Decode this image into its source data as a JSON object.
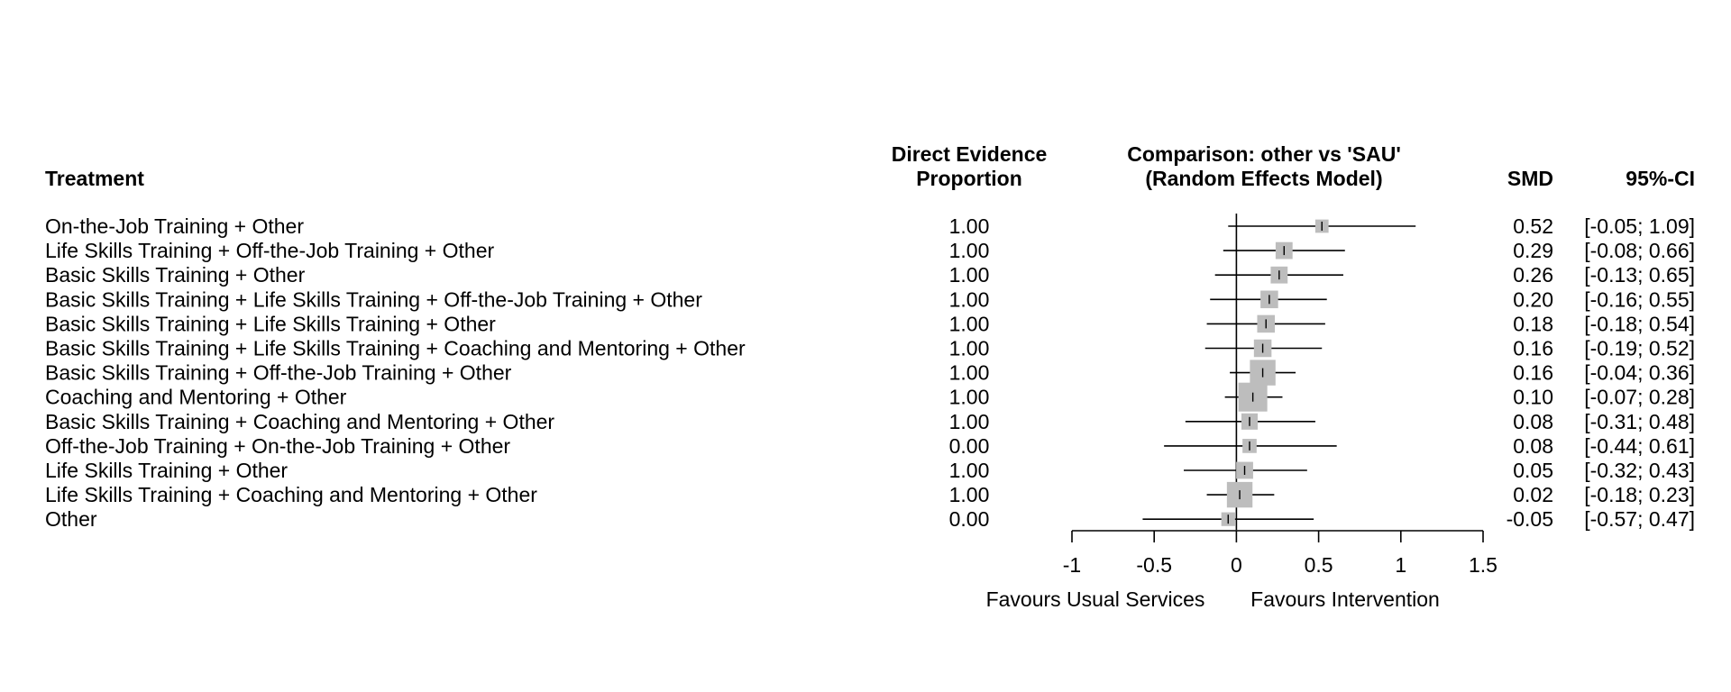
{
  "headers": {
    "treatment": "Treatment",
    "direct_evidence_line1": "Direct Evidence",
    "direct_evidence_line2": "Proportion",
    "comparison_line1": "Comparison: other vs 'SAU'",
    "comparison_line2": "(Random Effects Model)",
    "smd": "SMD",
    "ci": "95%-CI"
  },
  "x_axis": {
    "ticks": [
      "-1",
      "-0.5",
      "0",
      "0.5",
      "1",
      "1.5"
    ],
    "label_left": "Favours Usual Services",
    "label_right": "Favours Intervention"
  },
  "colors": {
    "box": "#bdbdbd",
    "line": "#000000"
  },
  "chart_data": {
    "type": "forest",
    "title": "Comparison: other vs 'SAU' (Random Effects Model)",
    "xlim": [
      -1,
      1.5
    ],
    "reference_line": 0,
    "rows": [
      {
        "treatment": "On-the-Job Training + Other",
        "direct_evidence": "1.00",
        "smd": 0.52,
        "lower": -0.05,
        "upper": 1.09,
        "smd_text": "0.52",
        "ci_text": "[-0.05; 1.09]",
        "weight": 0.28
      },
      {
        "treatment": "Life Skills Training + Off-the-Job Training + Other",
        "direct_evidence": "1.00",
        "smd": 0.29,
        "lower": -0.08,
        "upper": 0.66,
        "smd_text": "0.29",
        "ci_text": "[-0.08; 0.66]",
        "weight": 0.45
      },
      {
        "treatment": "Basic Skills Training + Other",
        "direct_evidence": "1.00",
        "smd": 0.26,
        "lower": -0.13,
        "upper": 0.65,
        "smd_text": "0.26",
        "ci_text": "[-0.13; 0.65]",
        "weight": 0.45
      },
      {
        "treatment": "Basic Skills Training + Life Skills Training + Off-the-Job Training + Other",
        "direct_evidence": "1.00",
        "smd": 0.2,
        "lower": -0.16,
        "upper": 0.55,
        "smd_text": "0.20",
        "ci_text": "[-0.16; 0.55]",
        "weight": 0.48
      },
      {
        "treatment": "Basic Skills Training + Life Skills Training + Other",
        "direct_evidence": "1.00",
        "smd": 0.18,
        "lower": -0.18,
        "upper": 0.54,
        "smd_text": "0.18",
        "ci_text": "[-0.18; 0.54]",
        "weight": 0.48
      },
      {
        "treatment": "Basic Skills Training + Life Skills Training + Coaching and Mentoring + Other",
        "direct_evidence": "1.00",
        "smd": 0.16,
        "lower": -0.19,
        "upper": 0.52,
        "smd_text": "0.16",
        "ci_text": "[-0.19; 0.52]",
        "weight": 0.48
      },
      {
        "treatment": "Basic Skills Training + Off-the-Job Training + Other",
        "direct_evidence": "1.00",
        "smd": 0.16,
        "lower": -0.04,
        "upper": 0.36,
        "smd_text": "0.16",
        "ci_text": "[-0.04; 0.36]",
        "weight": 0.85
      },
      {
        "treatment": "Coaching and Mentoring + Other",
        "direct_evidence": "1.00",
        "smd": 0.1,
        "lower": -0.07,
        "upper": 0.28,
        "smd_text": "0.10",
        "ci_text": "[-0.07; 0.28]",
        "weight": 1.0
      },
      {
        "treatment": "Basic Skills Training + Coaching and Mentoring + Other",
        "direct_evidence": "1.00",
        "smd": 0.08,
        "lower": -0.31,
        "upper": 0.48,
        "smd_text": "0.08",
        "ci_text": "[-0.31; 0.48]",
        "weight": 0.42
      },
      {
        "treatment": "Off-the-Job Training + On-the-Job Training + Other",
        "direct_evidence": "0.00",
        "smd": 0.08,
        "lower": -0.44,
        "upper": 0.61,
        "smd_text": "0.08",
        "ci_text": "[-0.44; 0.61]",
        "weight": 0.32
      },
      {
        "treatment": "Life Skills Training + Other",
        "direct_evidence": "1.00",
        "smd": 0.05,
        "lower": -0.32,
        "upper": 0.43,
        "smd_text": "0.05",
        "ci_text": "[-0.32; 0.43]",
        "weight": 0.45
      },
      {
        "treatment": "Life Skills Training + Coaching and Mentoring + Other",
        "direct_evidence": "1.00",
        "smd": 0.02,
        "lower": -0.18,
        "upper": 0.23,
        "smd_text": "0.02",
        "ci_text": "[-0.18; 0.23]",
        "weight": 0.85
      },
      {
        "treatment": "Other",
        "direct_evidence": "0.00",
        "smd": -0.05,
        "lower": -0.57,
        "upper": 0.47,
        "smd_text": "-0.05",
        "ci_text": "[-0.57; 0.47]",
        "weight": 0.3
      }
    ]
  }
}
